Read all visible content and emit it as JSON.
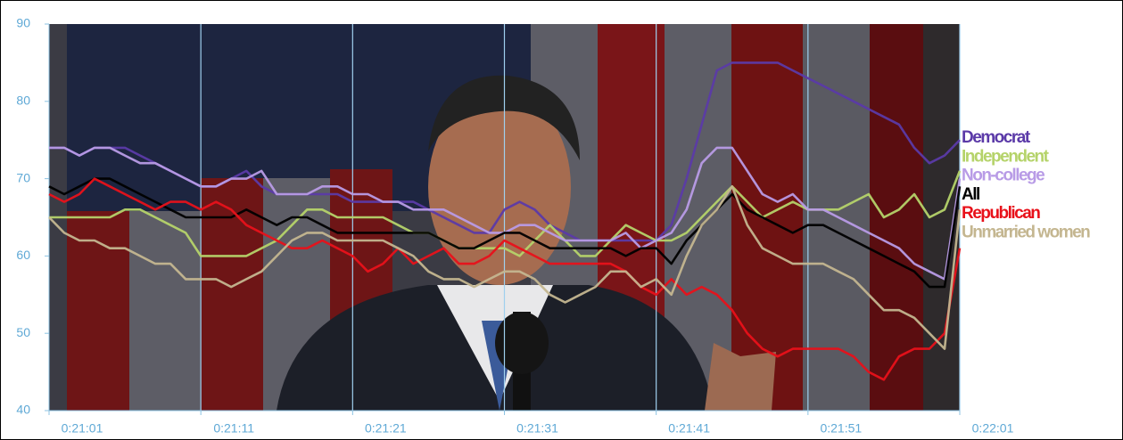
{
  "chart_data": {
    "type": "line",
    "categories": [
      "0:21:01",
      null,
      null,
      null,
      null,
      null,
      null,
      null,
      null,
      null,
      "0:21:11",
      null,
      null,
      null,
      null,
      null,
      null,
      null,
      null,
      null,
      "0:21:21",
      null,
      null,
      null,
      null,
      null,
      null,
      null,
      null,
      null,
      "0:21:31",
      null,
      null,
      null,
      null,
      null,
      null,
      null,
      null,
      null,
      "0:21:41",
      null,
      null,
      null,
      null,
      null,
      null,
      null,
      null,
      null,
      "0:21:51",
      null,
      null,
      null,
      null,
      null,
      null,
      null,
      null,
      null,
      "0:22:01"
    ],
    "series": [
      {
        "name": "Democrat",
        "color": "#5b3aa8",
        "values": [
          74,
          74,
          73,
          74,
          74,
          74,
          73,
          72,
          71,
          70,
          69,
          69,
          70,
          71,
          69,
          68,
          68,
          68,
          68,
          68,
          67,
          67,
          67,
          67,
          67,
          66,
          65,
          64,
          63,
          63,
          66,
          67,
          66,
          64,
          63,
          62,
          62,
          62,
          62,
          62,
          62,
          64,
          70,
          77,
          84,
          85,
          85,
          85,
          85,
          84,
          83,
          82,
          81,
          80,
          79,
          78,
          77,
          74,
          72,
          73,
          75
        ]
      },
      {
        "name": "Independent",
        "color": "#b5d36a",
        "values": [
          65,
          65,
          65,
          65,
          65,
          66,
          66,
          65,
          64,
          63,
          60,
          60,
          60,
          60,
          61,
          62,
          64,
          66,
          66,
          65,
          65,
          65,
          65,
          64,
          63,
          63,
          62,
          61,
          61,
          61,
          61,
          60,
          62,
          64,
          62,
          60,
          60,
          62,
          64,
          63,
          62,
          62,
          63,
          65,
          67,
          69,
          67,
          65,
          66,
          67,
          66,
          66,
          66,
          67,
          68,
          65,
          66,
          68,
          65,
          66,
          71
        ]
      },
      {
        "name": "Non-college",
        "color": "#b89be6",
        "values": [
          74,
          74,
          73,
          74,
          74,
          73,
          72,
          72,
          71,
          70,
          69,
          69,
          70,
          70,
          71,
          68,
          68,
          68,
          69,
          69,
          68,
          68,
          67,
          67,
          66,
          66,
          66,
          65,
          64,
          63,
          63,
          64,
          64,
          63,
          62,
          62,
          62,
          62,
          63,
          61,
          62,
          63,
          66,
          72,
          74,
          74,
          71,
          68,
          67,
          68,
          66,
          66,
          65,
          64,
          63,
          62,
          61,
          59,
          58,
          57,
          70
        ]
      },
      {
        "name": "All",
        "color": "#000000",
        "values": [
          69,
          68,
          69,
          70,
          70,
          69,
          68,
          67,
          66,
          65,
          65,
          65,
          65,
          66,
          65,
          64,
          65,
          65,
          64,
          63,
          63,
          63,
          63,
          63,
          63,
          63,
          62,
          61,
          61,
          62,
          63,
          63,
          62,
          61,
          61,
          61,
          61,
          61,
          60,
          61,
          61,
          59,
          62,
          64,
          66,
          68,
          66,
          65,
          64,
          63,
          64,
          64,
          63,
          62,
          61,
          60,
          59,
          58,
          56,
          56,
          69
        ]
      },
      {
        "name": "Republican",
        "color": "#e8111a",
        "values": [
          68,
          67,
          68,
          70,
          69,
          68,
          67,
          66,
          67,
          67,
          66,
          67,
          66,
          64,
          63,
          62,
          61,
          61,
          62,
          61,
          60,
          58,
          59,
          61,
          59,
          60,
          61,
          59,
          59,
          60,
          62,
          61,
          60,
          59,
          59,
          59,
          59,
          59,
          58,
          56,
          55,
          57,
          55,
          56,
          55,
          53,
          50,
          48,
          47,
          48,
          48,
          48,
          48,
          47,
          45,
          44,
          47,
          48,
          48,
          50,
          61
        ]
      },
      {
        "name": "Unmarried women",
        "color": "#c4b690",
        "values": [
          65,
          63,
          62,
          62,
          61,
          61,
          60,
          59,
          59,
          57,
          57,
          57,
          56,
          57,
          58,
          60,
          62,
          63,
          63,
          62,
          62,
          62,
          62,
          61,
          60,
          58,
          57,
          57,
          56,
          57,
          58,
          58,
          57,
          55,
          54,
          55,
          56,
          58,
          58,
          56,
          57,
          55,
          60,
          64,
          66,
          69,
          64,
          61,
          60,
          59,
          59,
          59,
          58,
          57,
          55,
          53,
          53,
          52,
          50,
          48,
          66
        ]
      }
    ],
    "ylim": [
      40,
      90
    ],
    "yticks": [
      40,
      50,
      60,
      70,
      80,
      90
    ],
    "grid": true,
    "legend": "right"
  }
}
